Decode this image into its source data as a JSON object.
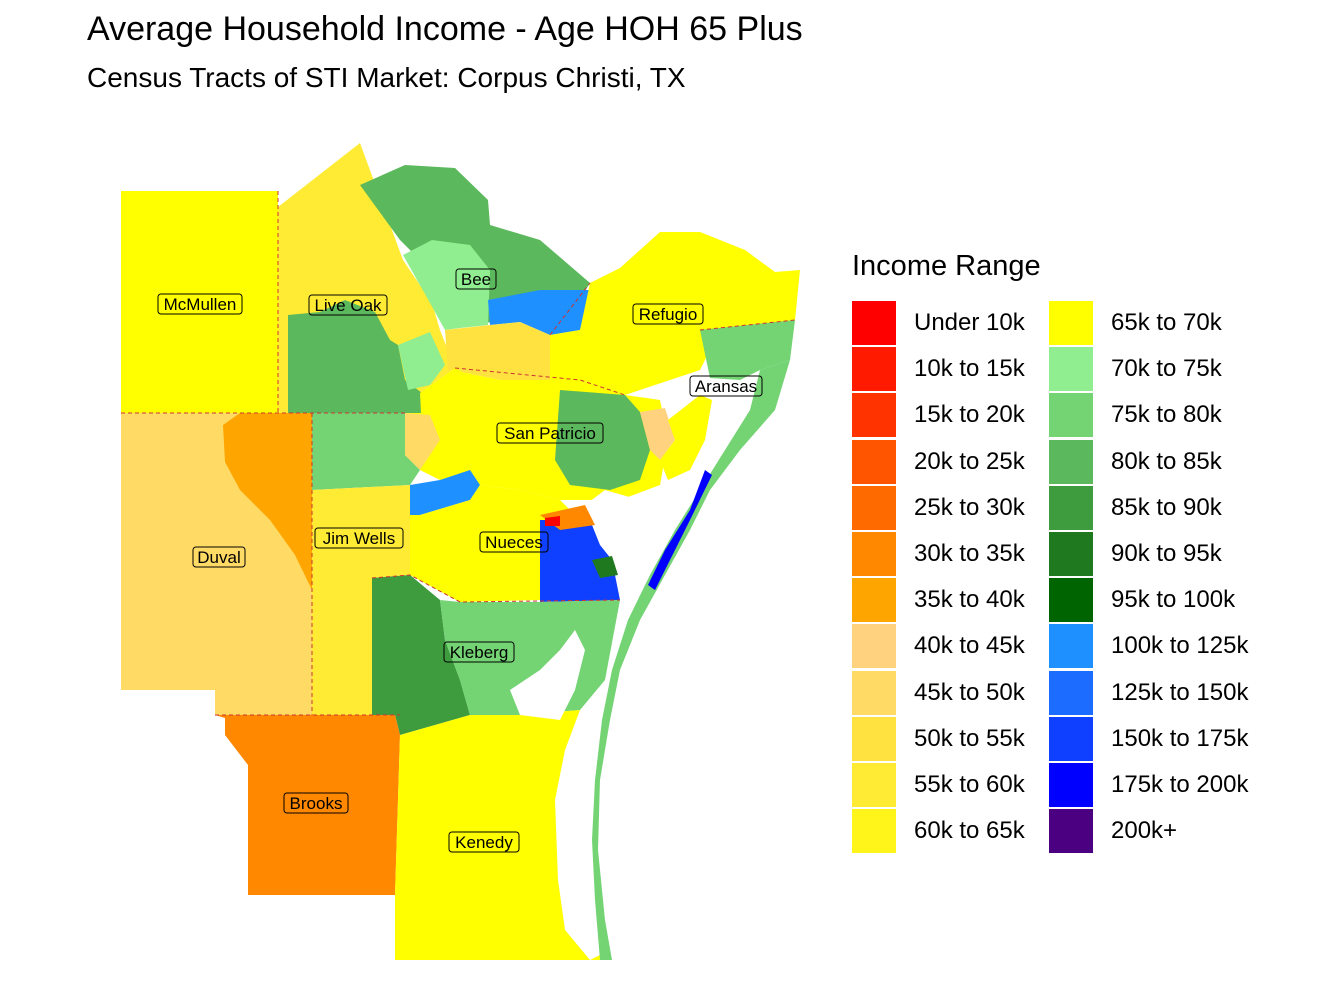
{
  "title": "Average Household Income - Age HOH 65 Plus",
  "subtitle": "Census Tracts of STI Market: Corpus Christi, TX",
  "legend": {
    "title": "Income Range",
    "items": [
      {
        "label": "Under 10k",
        "color": "#FF0000"
      },
      {
        "label": "10k to 15k",
        "color": "#FF1A00"
      },
      {
        "label": "15k to 20k",
        "color": "#FF3300"
      },
      {
        "label": "20k to 25k",
        "color": "#FF5500"
      },
      {
        "label": "25k to 30k",
        "color": "#FF6A00"
      },
      {
        "label": "30k to 35k",
        "color": "#FF8800"
      },
      {
        "label": "35k to 40k",
        "color": "#FFA500"
      },
      {
        "label": "40k to 45k",
        "color": "#FFD280"
      },
      {
        "label": "45k to 50k",
        "color": "#FFDB66"
      },
      {
        "label": "50k to 55k",
        "color": "#FFE240"
      },
      {
        "label": "55k to 60k",
        "color": "#FFEB33"
      },
      {
        "label": "60k to 65k",
        "color": "#FFF51A"
      },
      {
        "label": "65k to 70k",
        "color": "#FFFF00"
      },
      {
        "label": "70k to 75k",
        "color": "#90EE90"
      },
      {
        "label": "75k to 80k",
        "color": "#74D474"
      },
      {
        "label": "80k to 85k",
        "color": "#5CB85C"
      },
      {
        "label": "85k to 90k",
        "color": "#3E9B3E"
      },
      {
        "label": "90k to 95k",
        "color": "#1F7A1F"
      },
      {
        "label": "95k to 100k",
        "color": "#006400"
      },
      {
        "label": "100k to 125k",
        "color": "#1E90FF"
      },
      {
        "label": "125k to 150k",
        "color": "#1C6DFF"
      },
      {
        "label": "150k to 175k",
        "color": "#1040FF"
      },
      {
        "label": "175k to 200k",
        "color": "#0000FF"
      },
      {
        "label": "200k+",
        "color": "#4B0082"
      }
    ]
  },
  "map": {
    "counties": [
      "McMullen",
      "Live Oak",
      "Bee",
      "Refugio",
      "Aransas",
      "San Patricio",
      "Duval",
      "Jim Wells",
      "Nueces",
      "Kleberg",
      "Brooks",
      "Kenedy"
    ]
  }
}
